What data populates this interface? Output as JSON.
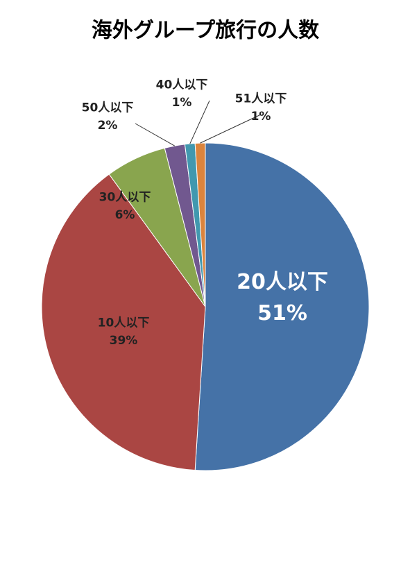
{
  "chart_data": {
    "type": "pie",
    "title": "海外グループ旅行の人数",
    "categories": [
      "20人以下",
      "10人以下",
      "30人以下",
      "50人以下",
      "40人以下",
      "51人以下"
    ],
    "values": [
      51,
      39,
      6,
      2,
      1,
      1
    ],
    "value_labels": [
      "51%",
      "39%",
      "6%",
      "2%",
      "1%",
      "1%"
    ],
    "colors": [
      "#4572a7",
      "#aa4643",
      "#89a54e",
      "#71588f",
      "#4198af",
      "#db843d"
    ]
  }
}
